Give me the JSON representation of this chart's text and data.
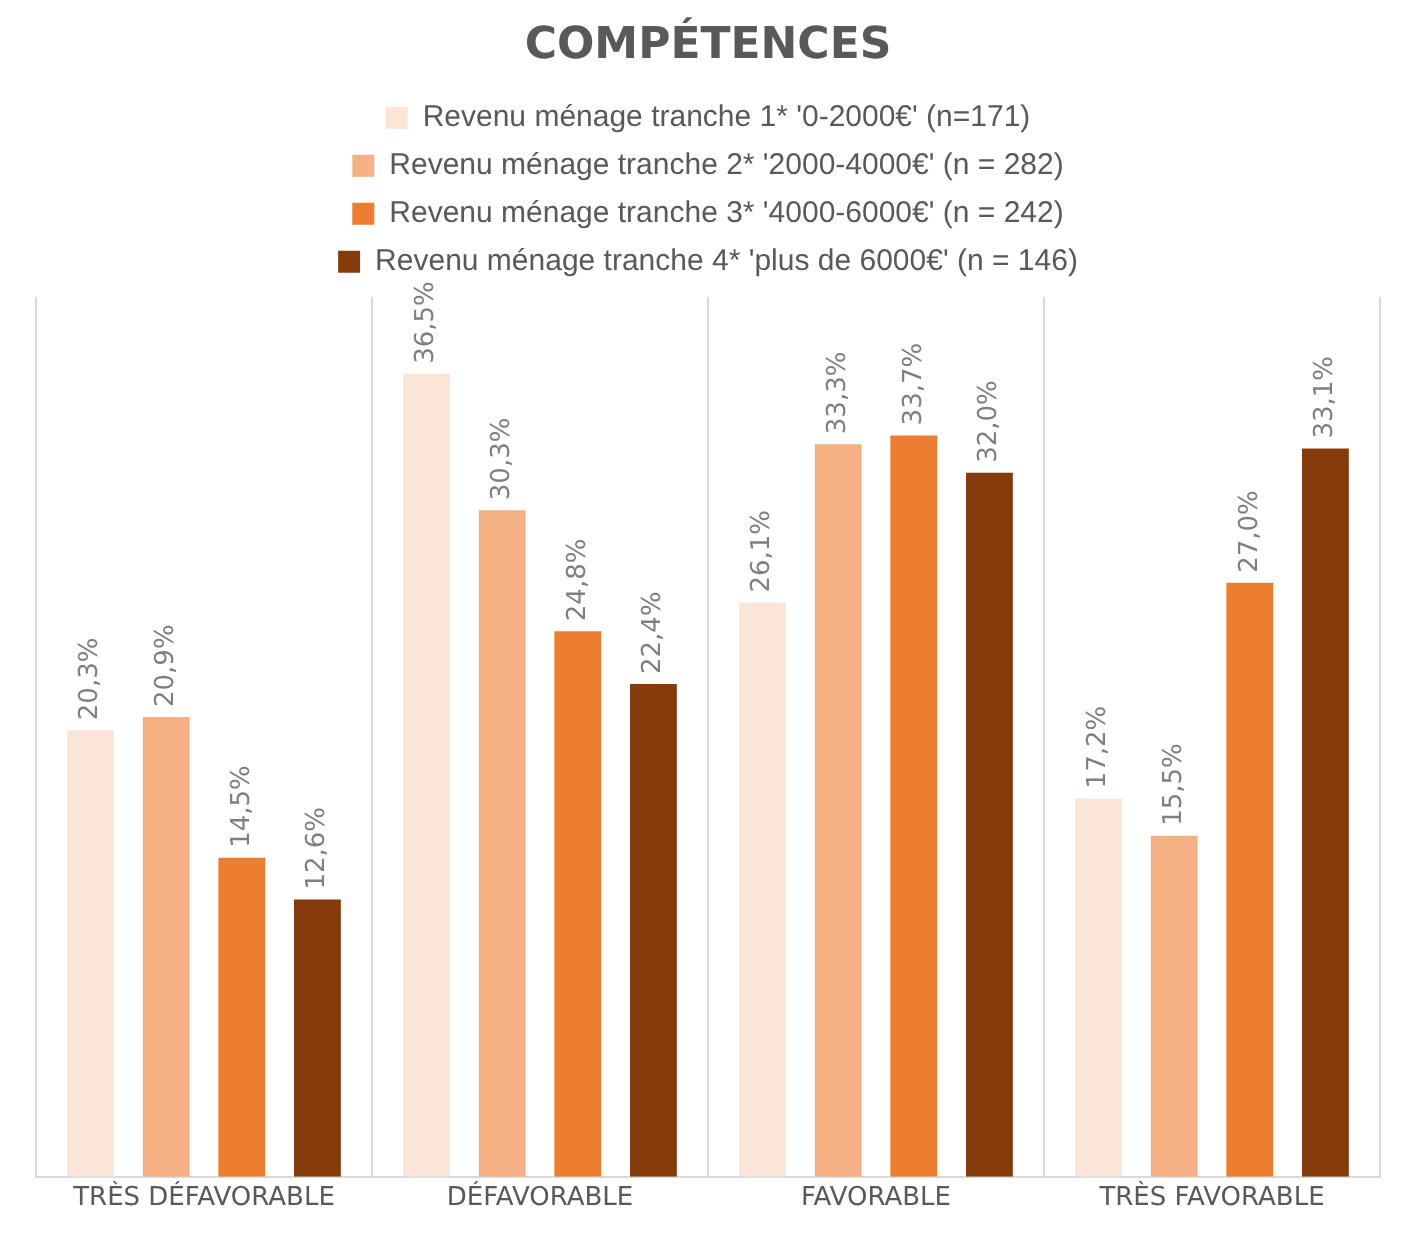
{
  "chart_data": {
    "type": "bar",
    "title": "COMPÉTENCES",
    "categories": [
      "TRÈS DÉFAVORABLE",
      "DÉFAVORABLE",
      "FAVORABLE",
      "TRÈS FAVORABLE"
    ],
    "series": [
      {
        "name": "Revenu ménage tranche 1* '0-2000€' (n=171)",
        "color": "#fbe5d6",
        "values": [
          20.3,
          36.5,
          26.1,
          17.2
        ],
        "value_labels": [
          "20,3%",
          "36,5%",
          "26,1%",
          "17,2%"
        ]
      },
      {
        "name": "Revenu ménage tranche 2* '2000-4000€' (n = 282)",
        "color": "#f4b183",
        "values": [
          20.9,
          30.3,
          33.3,
          15.5
        ],
        "value_labels": [
          "20,9%",
          "30,3%",
          "33,3%",
          "15,5%"
        ]
      },
      {
        "name": "Revenu ménage tranche 3* '4000-6000€' (n = 242)",
        "color": "#ed7d31",
        "values": [
          14.5,
          24.8,
          33.7,
          27.0
        ],
        "value_labels": [
          "14,5%",
          "24,8%",
          "33,7%",
          "27,0%"
        ]
      },
      {
        "name": "Revenu ménage tranche 4* 'plus de 6000€' (n = 146)",
        "color": "#843c0c",
        "values": [
          12.6,
          22.4,
          32.0,
          33.1
        ],
        "value_labels": [
          "12,6%",
          "22,4%",
          "32,0%",
          "33,1%"
        ]
      }
    ],
    "grid": "x",
    "legend": "top",
    "tick_labels": "x"
  }
}
